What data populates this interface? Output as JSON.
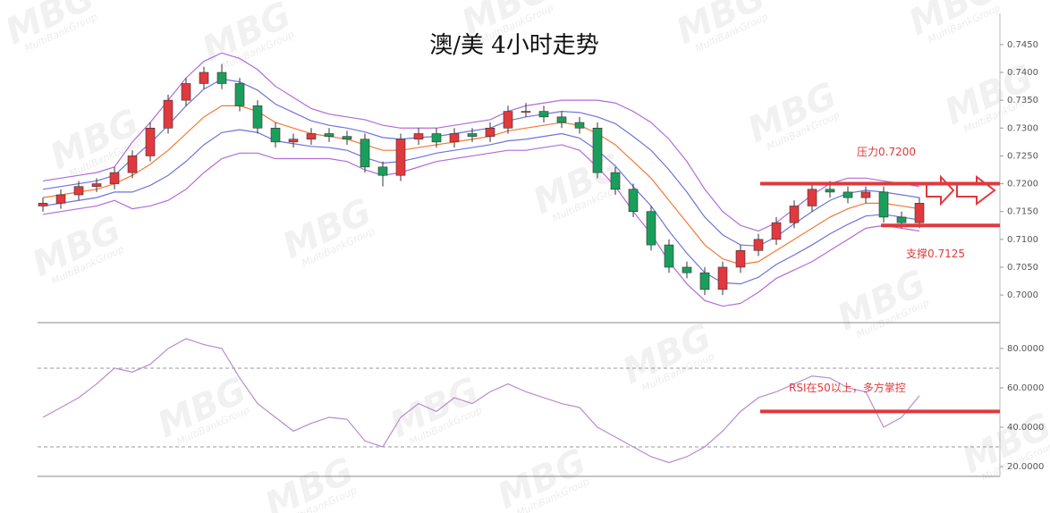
{
  "watermark": {
    "logo": "MBG",
    "text": "MultiBankGroup"
  },
  "chart_data": [
    {
      "type": "candlestick",
      "title": "澳/美 4小时走势",
      "open": [
        0.716,
        0.7165,
        0.718,
        0.7195,
        0.72,
        0.722,
        0.725,
        0.73,
        0.735,
        0.738,
        0.74,
        0.738,
        0.734,
        0.73,
        0.7275,
        0.728,
        0.729,
        0.7285,
        0.728,
        0.723,
        0.7215,
        0.728,
        0.729,
        0.7275,
        0.729,
        0.7285,
        0.73,
        0.733,
        0.733,
        0.732,
        0.731,
        0.73,
        0.722,
        0.719,
        0.715,
        0.709,
        0.705,
        0.704,
        0.701,
        0.705,
        0.708,
        0.71,
        0.713,
        0.716,
        0.719,
        0.7185,
        0.7175,
        0.7185,
        0.714,
        0.713
      ],
      "high": [
        0.7175,
        0.719,
        0.7205,
        0.721,
        0.723,
        0.726,
        0.731,
        0.736,
        0.739,
        0.741,
        0.7415,
        0.739,
        0.735,
        0.731,
        0.729,
        0.73,
        0.73,
        0.7295,
        0.729,
        0.724,
        0.729,
        0.73,
        0.73,
        0.73,
        0.73,
        0.731,
        0.734,
        0.7345,
        0.734,
        0.733,
        0.732,
        0.731,
        0.723,
        0.72,
        0.716,
        0.71,
        0.706,
        0.705,
        0.706,
        0.709,
        0.711,
        0.714,
        0.717,
        0.72,
        0.7205,
        0.7195,
        0.7195,
        0.7195,
        0.715,
        0.7175
      ],
      "low": [
        0.715,
        0.7155,
        0.717,
        0.7185,
        0.719,
        0.721,
        0.724,
        0.729,
        0.734,
        0.737,
        0.737,
        0.733,
        0.729,
        0.7265,
        0.7265,
        0.727,
        0.7275,
        0.727,
        0.722,
        0.7195,
        0.7205,
        0.727,
        0.7265,
        0.7265,
        0.7275,
        0.7275,
        0.729,
        0.732,
        0.731,
        0.73,
        0.729,
        0.721,
        0.718,
        0.714,
        0.708,
        0.704,
        0.703,
        0.7,
        0.7,
        0.704,
        0.707,
        0.709,
        0.712,
        0.715,
        0.7175,
        0.7165,
        0.7165,
        0.713,
        0.712,
        0.712
      ],
      "close": [
        0.7165,
        0.718,
        0.7195,
        0.72,
        0.722,
        0.725,
        0.73,
        0.735,
        0.738,
        0.74,
        0.738,
        0.734,
        0.73,
        0.7275,
        0.728,
        0.729,
        0.7285,
        0.728,
        0.723,
        0.7215,
        0.728,
        0.729,
        0.7275,
        0.729,
        0.7285,
        0.73,
        0.733,
        0.733,
        0.732,
        0.731,
        0.73,
        0.722,
        0.719,
        0.715,
        0.709,
        0.705,
        0.704,
        0.701,
        0.705,
        0.708,
        0.71,
        0.713,
        0.716,
        0.719,
        0.7185,
        0.7175,
        0.7185,
        0.714,
        0.713,
        0.7165
      ],
      "up_color": "#e0393e",
      "down_color": "#1a9e5c",
      "bands": [
        {
          "color": "#b36bd6",
          "values": [
            0.7205,
            0.721,
            0.7215,
            0.722,
            0.723,
            0.7275,
            0.731,
            0.735,
            0.739,
            0.742,
            0.7435,
            0.7425,
            0.7405,
            0.7375,
            0.7355,
            0.7335,
            0.7325,
            0.732,
            0.7315,
            0.7305,
            0.73,
            0.73,
            0.73,
            0.7305,
            0.731,
            0.7315,
            0.733,
            0.734,
            0.7345,
            0.735,
            0.735,
            0.735,
            0.7345,
            0.733,
            0.731,
            0.728,
            0.724,
            0.719,
            0.715,
            0.7125,
            0.7115,
            0.713,
            0.7155,
            0.718,
            0.72,
            0.721,
            0.721,
            0.7205,
            0.72,
            0.7195
          ]
        },
        {
          "color": "#6f74d8",
          "values": [
            0.719,
            0.7195,
            0.72,
            0.7205,
            0.7215,
            0.7245,
            0.7273,
            0.7305,
            0.734,
            0.737,
            0.7388,
            0.7383,
            0.7368,
            0.7343,
            0.7328,
            0.7313,
            0.7305,
            0.73,
            0.7293,
            0.7283,
            0.728,
            0.7283,
            0.7285,
            0.729,
            0.7295,
            0.73,
            0.7313,
            0.732,
            0.7325,
            0.733,
            0.7328,
            0.732,
            0.7308,
            0.7285,
            0.726,
            0.7225,
            0.7185,
            0.714,
            0.7108,
            0.709,
            0.7088,
            0.7105,
            0.7128,
            0.715,
            0.717,
            0.7183,
            0.7188,
            0.7185,
            0.718,
            0.7175
          ]
        },
        {
          "color": "#f07a3a",
          "values": [
            0.7175,
            0.718,
            0.7185,
            0.719,
            0.72,
            0.7215,
            0.7235,
            0.726,
            0.729,
            0.732,
            0.734,
            0.734,
            0.733,
            0.731,
            0.73,
            0.729,
            0.7285,
            0.728,
            0.727,
            0.726,
            0.726,
            0.7265,
            0.727,
            0.7275,
            0.728,
            0.7285,
            0.7295,
            0.73,
            0.7305,
            0.731,
            0.7305,
            0.729,
            0.727,
            0.724,
            0.721,
            0.717,
            0.713,
            0.709,
            0.7065,
            0.7055,
            0.706,
            0.708,
            0.71,
            0.712,
            0.714,
            0.7155,
            0.7165,
            0.7165,
            0.716,
            0.7155
          ]
        },
        {
          "color": "#6f74d8",
          "values": [
            0.716,
            0.7165,
            0.717,
            0.7175,
            0.7185,
            0.7185,
            0.7197,
            0.7215,
            0.724,
            0.727,
            0.7292,
            0.7297,
            0.7292,
            0.7277,
            0.7272,
            0.7267,
            0.7265,
            0.726,
            0.7247,
            0.7237,
            0.724,
            0.7247,
            0.7255,
            0.726,
            0.7265,
            0.727,
            0.7277,
            0.728,
            0.7285,
            0.729,
            0.7282,
            0.726,
            0.7232,
            0.7195,
            0.716,
            0.7115,
            0.7075,
            0.704,
            0.7022,
            0.702,
            0.7032,
            0.7055,
            0.7072,
            0.709,
            0.711,
            0.7127,
            0.7142,
            0.7145,
            0.714,
            0.7135
          ]
        },
        {
          "color": "#b36bd6",
          "values": [
            0.7145,
            0.715,
            0.7155,
            0.716,
            0.717,
            0.7155,
            0.716,
            0.717,
            0.719,
            0.722,
            0.7245,
            0.7255,
            0.7255,
            0.7245,
            0.7245,
            0.7245,
            0.7245,
            0.724,
            0.7225,
            0.7215,
            0.722,
            0.723,
            0.724,
            0.7245,
            0.725,
            0.7255,
            0.726,
            0.726,
            0.7265,
            0.727,
            0.726,
            0.723,
            0.7195,
            0.715,
            0.711,
            0.706,
            0.702,
            0.699,
            0.698,
            0.6985,
            0.7005,
            0.703,
            0.7045,
            0.706,
            0.708,
            0.71,
            0.712,
            0.7125,
            0.712,
            0.7115
          ]
        }
      ],
      "ylim": [
        0.6952,
        0.7506
      ],
      "yticks": [
        {
          "value": 0.7,
          "label": "0.7000"
        },
        {
          "value": 0.705,
          "label": "0.7050"
        },
        {
          "value": 0.71,
          "label": "0.7100"
        },
        {
          "value": 0.715,
          "label": "0.7150"
        },
        {
          "value": 0.72,
          "label": "0.7200"
        },
        {
          "value": 0.725,
          "label": "0.7250"
        },
        {
          "value": 0.73,
          "label": "0.7300"
        },
        {
          "value": 0.735,
          "label": "0.7350"
        },
        {
          "value": 0.74,
          "label": "0.7400"
        },
        {
          "value": 0.745,
          "label": "0.7450"
        }
      ],
      "resistance": {
        "label": "压力0.7200",
        "value": 0.72
      },
      "support": {
        "label": "支撑0.7125",
        "value": 0.7125
      },
      "level_color": "#e0393e"
    },
    {
      "type": "line",
      "values": [
        45,
        50,
        55,
        62,
        70,
        68,
        72,
        80,
        85,
        82,
        80,
        65,
        52,
        45,
        38,
        42,
        45,
        44,
        33,
        30,
        45,
        52,
        48,
        55,
        52,
        58,
        62,
        58,
        55,
        52,
        50,
        40,
        35,
        30,
        25,
        22,
        25,
        30,
        38,
        48,
        55,
        58,
        62,
        66,
        65,
        60,
        58,
        40,
        45,
        56
      ],
      "color": "#b98ad0",
      "ylim": [
        15,
        92.7
      ],
      "yticks": [
        {
          "value": 20,
          "label": "20.0000"
        },
        {
          "value": 40,
          "label": "40.0000"
        },
        {
          "value": 60,
          "label": "60.0000"
        },
        {
          "value": 80,
          "label": "80.0000"
        }
      ],
      "levels": [
        70,
        30
      ],
      "annotation": {
        "label": "RSI在50以上，多方掌控",
        "value": 48
      },
      "level_color": "#e0393e"
    }
  ]
}
